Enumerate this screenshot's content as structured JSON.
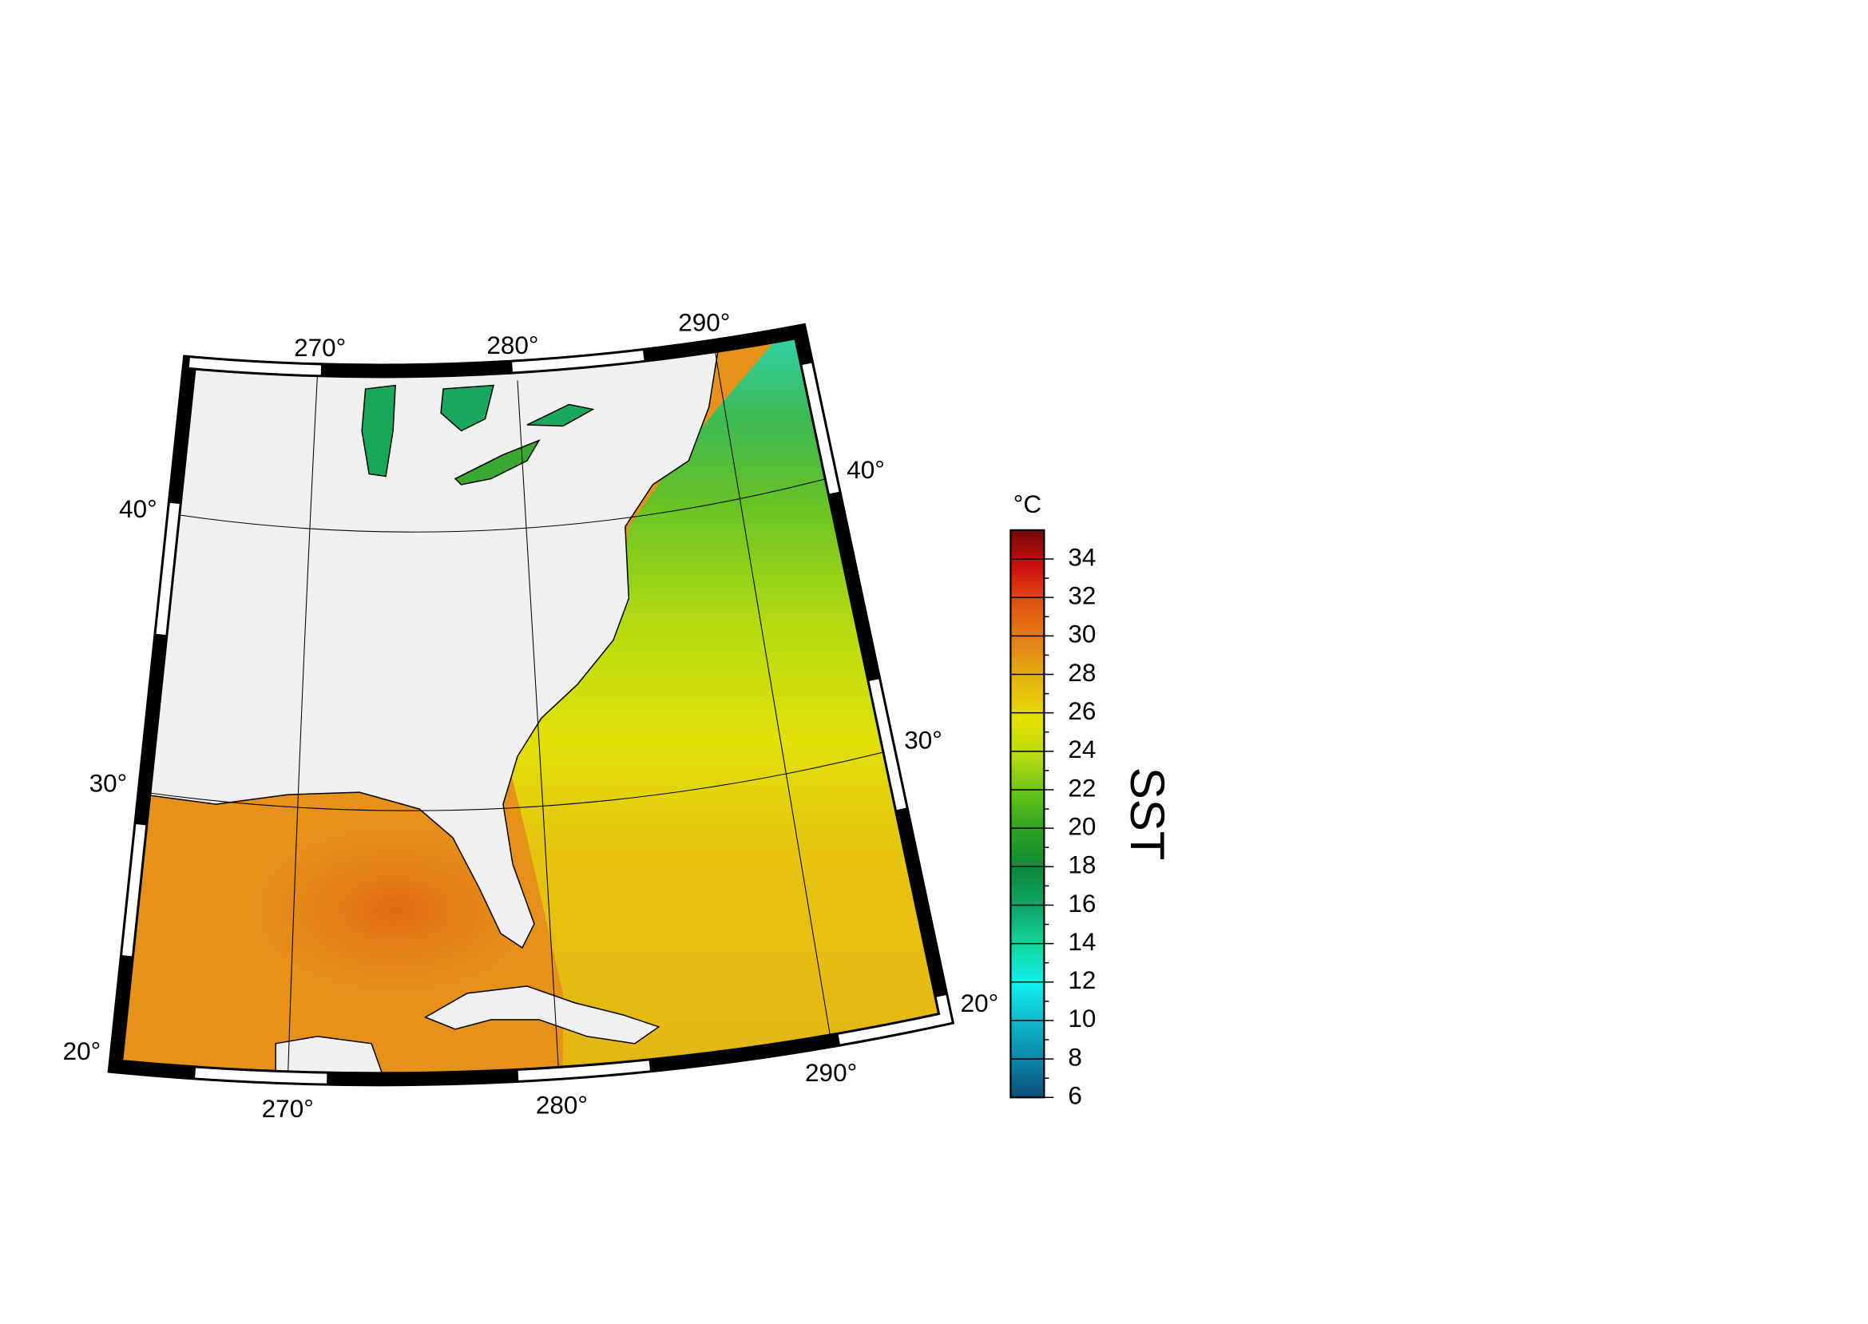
{
  "map": {
    "longitude_labels": [
      "270°",
      "280°",
      "290°"
    ],
    "latitude_labels": [
      "20°",
      "30°",
      "40°"
    ]
  },
  "colorbar": {
    "unit": "°C",
    "label": "SST",
    "range": [
      6,
      35.5
    ],
    "ticks": [
      6,
      8,
      10,
      12,
      14,
      16,
      18,
      20,
      22,
      24,
      26,
      28,
      30,
      32,
      34
    ],
    "colors": [
      "#0b4f7a",
      "#0a86a8",
      "#10b8c8",
      "#0ff0f0",
      "#12d8a0",
      "#10a868",
      "#0b8a3c",
      "#2aa020",
      "#62c218",
      "#b6dc10",
      "#e4e000",
      "#e6b60e",
      "#e6841a",
      "#e05810",
      "#d01010",
      "#760808"
    ]
  }
}
